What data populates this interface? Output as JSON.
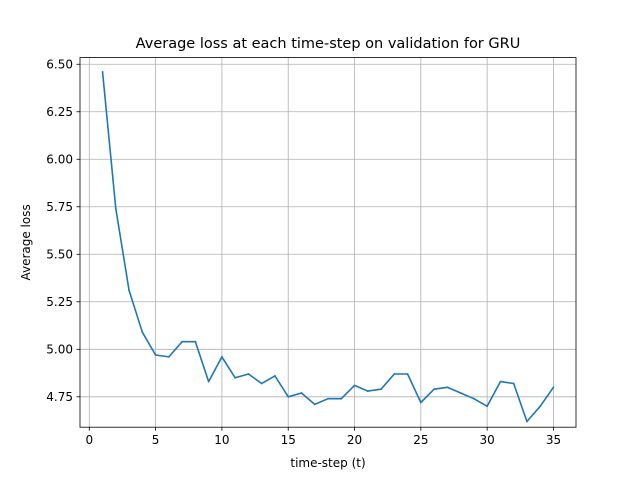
{
  "chart_data": {
    "type": "line",
    "title": "Average loss at each time-step on validation for GRU",
    "xlabel": "time-step (t)",
    "ylabel": "Average loss",
    "xlim": [
      -0.7,
      36.7
    ],
    "ylim": [
      4.59,
      6.535
    ],
    "xticks": [
      0,
      5,
      10,
      15,
      20,
      25,
      30,
      35
    ],
    "xtick_labels": [
      "0",
      "5",
      "10",
      "15",
      "20",
      "25",
      "30",
      "35"
    ],
    "yticks": [
      4.75,
      5.0,
      5.25,
      5.5,
      5.75,
      6.0,
      6.25,
      6.5
    ],
    "ytick_labels": [
      "4.75",
      "5.00",
      "5.25",
      "5.50",
      "5.75",
      "6.00",
      "6.25",
      "6.50"
    ],
    "grid": true,
    "series": [
      {
        "color": "#1f77b4",
        "x": [
          1,
          2,
          3,
          4,
          5,
          6,
          7,
          8,
          9,
          10,
          11,
          12,
          13,
          14,
          15,
          16,
          17,
          18,
          19,
          20,
          21,
          22,
          23,
          24,
          25,
          26,
          27,
          28,
          29,
          30,
          31,
          32,
          33,
          34,
          35
        ],
        "y": [
          6.46,
          5.74,
          5.31,
          5.09,
          4.97,
          4.96,
          5.04,
          5.04,
          4.83,
          4.96,
          4.85,
          4.87,
          4.82,
          4.86,
          4.75,
          4.77,
          4.71,
          4.74,
          4.74,
          4.81,
          4.78,
          4.79,
          4.87,
          4.87,
          4.72,
          4.79,
          4.8,
          4.77,
          4.74,
          4.7,
          4.83,
          4.82,
          4.62,
          4.7,
          4.8
        ]
      }
    ]
  }
}
